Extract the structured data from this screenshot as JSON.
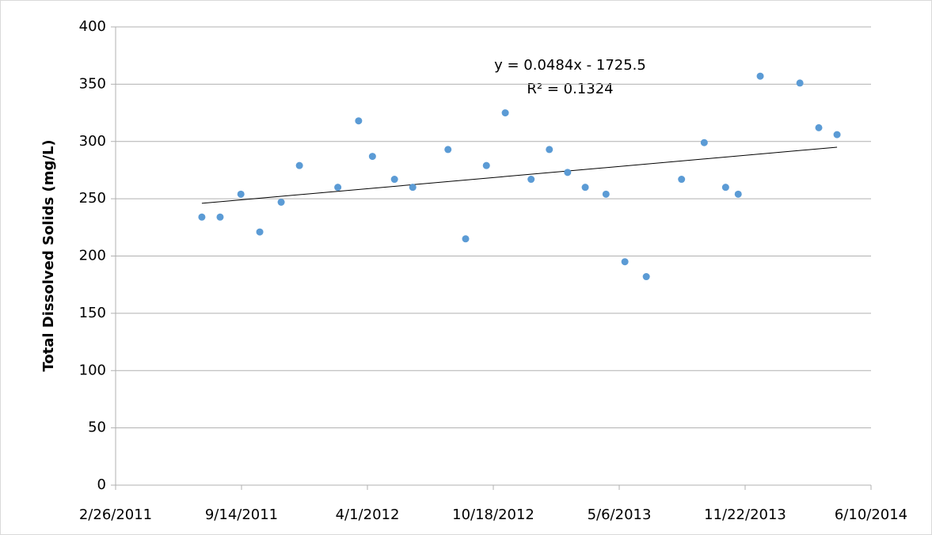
{
  "chart_data": {
    "type": "scatter",
    "y_label": "Total Dissolved Solids (mg/L)",
    "x": [
      "7/13/2011",
      "8/11/2011",
      "9/13/2011",
      "10/13/2011",
      "11/16/2011",
      "12/15/2011",
      "2/14/2012",
      "3/18/2012",
      "4/9/2012",
      "5/14/2012",
      "6/12/2012",
      "8/7/2012",
      "9/4/2012",
      "10/7/2012",
      "11/6/2012",
      "12/17/2012",
      "1/15/2013",
      "2/13/2013",
      "3/13/2013",
      "4/15/2013",
      "5/15/2013",
      "6/18/2013",
      "8/13/2013",
      "9/18/2013",
      "10/22/2013",
      "11/11/2013",
      "12/16/2013",
      "2/17/2014",
      "3/19/2014",
      "4/17/2014"
    ],
    "values": [
      234,
      234,
      254,
      221,
      247,
      279,
      260,
      318,
      287,
      267,
      260,
      293,
      215,
      279,
      325,
      267,
      293,
      273,
      260,
      254,
      195,
      182,
      267,
      299,
      260,
      254,
      357,
      351,
      312,
      306
    ],
    "color": "#5b9bd5",
    "trendline": {
      "equation": "y = 0.0484x - 1725.5",
      "r_squared": "R² = 0.1324",
      "x": [
        "7/13/2011",
        "4/17/2014"
      ],
      "values": [
        246,
        295
      ],
      "color": "#000000"
    },
    "xlim": [
      "2/26/2011",
      "6/10/2014"
    ],
    "xticks": [
      "2/26/2011",
      "9/14/2011",
      "4/1/2012",
      "10/18/2012",
      "5/6/2013",
      "11/22/2013",
      "6/10/2014"
    ],
    "ylim": [
      0,
      400
    ],
    "yticks": [
      0,
      50,
      100,
      150,
      200,
      250,
      300,
      350,
      400
    ],
    "grid": true
  }
}
